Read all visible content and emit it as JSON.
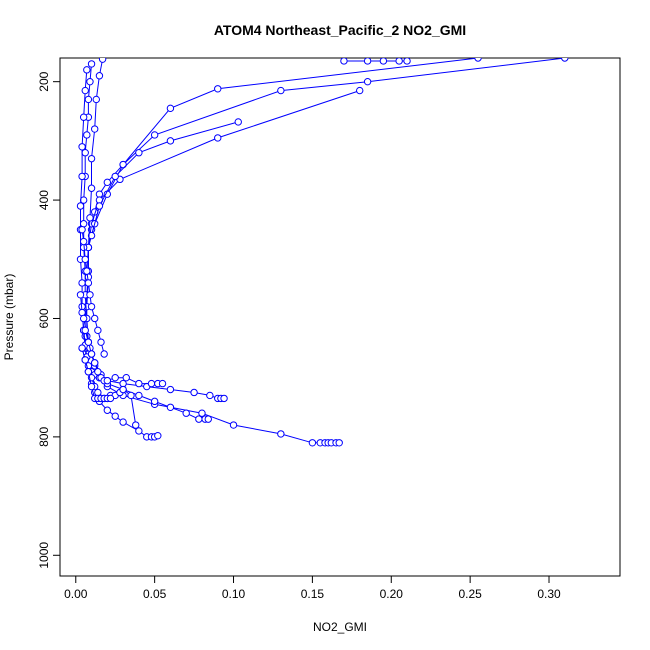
{
  "chart_data": {
    "type": "scatter",
    "title": "ATOM4 Northeast_Pacific_2 NO2_GMI",
    "xlabel": "NO2_GMI",
    "ylabel": "Pressure (mbar)",
    "xlim": [
      -0.01,
      0.345
    ],
    "ylim": [
      1035,
      160
    ],
    "y_reversed": true,
    "x_ticks": [
      "0.00",
      "0.05",
      "0.10",
      "0.15",
      "0.20",
      "0.25",
      "0.30"
    ],
    "y_ticks": [
      "200",
      "400",
      "600",
      "800",
      "1000"
    ],
    "grid": false,
    "legend": "none",
    "marker": "open-circle",
    "color": "#0000ff",
    "series": [
      {
        "x": [
          0.17,
          0.185,
          0.195,
          0.205,
          0.21
        ],
        "y": [
          165,
          165,
          165,
          165,
          165
        ]
      },
      {
        "x": [
          0.31,
          0.185,
          0.13,
          0.05,
          0.03,
          0.02,
          0.015,
          0.012,
          0.01,
          0.008,
          0.008,
          0.007,
          0.006,
          0.006,
          0.007
        ],
        "y": [
          160,
          200,
          215,
          290,
          340,
          370,
          390,
          420,
          450,
          480,
          520,
          560,
          600,
          630,
          650
        ]
      },
      {
        "x": [
          0.18,
          0.09,
          0.028,
          0.015,
          0.01,
          0.008,
          0.007
        ],
        "y": [
          215,
          295,
          365,
          400,
          440,
          480,
          520
        ]
      },
      {
        "x": [
          0.255,
          0.09,
          0.06,
          0.03,
          0.02,
          0.012,
          0.008
        ],
        "y": [
          160,
          212,
          245,
          340,
          390,
          440,
          480
        ]
      },
      {
        "x": [
          0.103,
          0.06,
          0.04,
          0.025,
          0.015,
          0.01
        ],
        "y": [
          268,
          300,
          320,
          360,
          410,
          460
        ]
      },
      {
        "x": [
          0.017,
          0.015,
          0.013,
          0.012,
          0.01,
          0.01,
          0.009,
          0.008,
          0.008,
          0.007,
          0.007,
          0.006
        ],
        "y": [
          162,
          190,
          230,
          280,
          330,
          380,
          430,
          480,
          530,
          580,
          630,
          670
        ]
      },
      {
        "x": [
          0.01,
          0.009,
          0.008,
          0.008,
          0.007,
          0.006,
          0.006,
          0.005,
          0.005,
          0.005,
          0.006,
          0.006,
          0.007,
          0.008
        ],
        "y": [
          170,
          200,
          230,
          260,
          290,
          320,
          360,
          400,
          440,
          480,
          520,
          560,
          600,
          640
        ]
      },
      {
        "x": [
          0.007,
          0.006,
          0.005,
          0.004,
          0.004,
          0.003,
          0.003,
          0.003,
          0.004,
          0.004,
          0.005,
          0.006
        ],
        "y": [
          180,
          215,
          260,
          310,
          360,
          410,
          450,
          500,
          540,
          580,
          620,
          650
        ]
      },
      {
        "x": [
          0.003,
          0.004,
          0.005,
          0.006,
          0.007,
          0.008,
          0.01,
          0.012,
          0.015,
          0.02,
          0.03,
          0.045,
          0.06,
          0.075,
          0.085,
          0.09,
          0.092,
          0.094
        ],
        "y": [
          560,
          590,
          620,
          645,
          665,
          680,
          690,
          695,
          700,
          705,
          710,
          715,
          720,
          725,
          730,
          735,
          735,
          735
        ]
      },
      {
        "x": [
          0.005,
          0.008,
          0.01,
          0.012,
          0.015,
          0.02,
          0.03,
          0.05,
          0.08,
          0.1,
          0.13,
          0.15,
          0.155,
          0.158,
          0.16,
          0.162,
          0.165,
          0.167
        ],
        "y": [
          600,
          640,
          660,
          680,
          700,
          715,
          730,
          745,
          760,
          780,
          795,
          810,
          810,
          810,
          810,
          810,
          810,
          810
        ]
      },
      {
        "x": [
          0.004,
          0.006,
          0.008,
          0.01,
          0.012,
          0.015,
          0.02,
          0.025,
          0.03,
          0.04,
          0.045,
          0.048,
          0.05,
          0.052
        ],
        "y": [
          650,
          670,
          690,
          710,
          725,
          740,
          755,
          765,
          775,
          790,
          800,
          800,
          800,
          798
        ]
      },
      {
        "x": [
          0.006,
          0.009,
          0.012,
          0.016,
          0.02,
          0.03,
          0.04,
          0.05,
          0.06,
          0.07,
          0.078,
          0.082,
          0.084
        ],
        "y": [
          620,
          650,
          675,
          695,
          710,
          720,
          730,
          740,
          750,
          760,
          770,
          770,
          770
        ]
      },
      {
        "x": [
          0.008,
          0.01,
          0.012,
          0.014,
          0.016,
          0.018,
          0.02,
          0.025,
          0.032,
          0.04,
          0.048,
          0.052,
          0.055
        ],
        "y": [
          640,
          660,
          675,
          690,
          700,
          705,
          705,
          700,
          700,
          710,
          710,
          710,
          710
        ]
      },
      {
        "x": [
          0.01,
          0.012,
          0.014,
          0.016,
          0.018,
          0.02,
          0.022,
          0.025,
          0.028,
          0.03,
          0.035,
          0.038
        ],
        "y": [
          700,
          715,
          725,
          735,
          735,
          735,
          730,
          730,
          725,
          720,
          730,
          780
        ]
      },
      {
        "x": [
          0.004,
          0.006,
          0.008,
          0.01,
          0.012,
          0.014,
          0.016,
          0.018,
          0.02,
          0.022
        ],
        "y": [
          650,
          670,
          690,
          715,
          735,
          735,
          735,
          735,
          735,
          735
        ]
      },
      {
        "x": [
          0.004,
          0.005,
          0.006,
          0.007,
          0.008,
          0.009,
          0.01,
          0.012,
          0.014,
          0.016,
          0.018
        ],
        "y": [
          450,
          470,
          500,
          520,
          540,
          560,
          580,
          600,
          620,
          640,
          660
        ]
      }
    ]
  }
}
